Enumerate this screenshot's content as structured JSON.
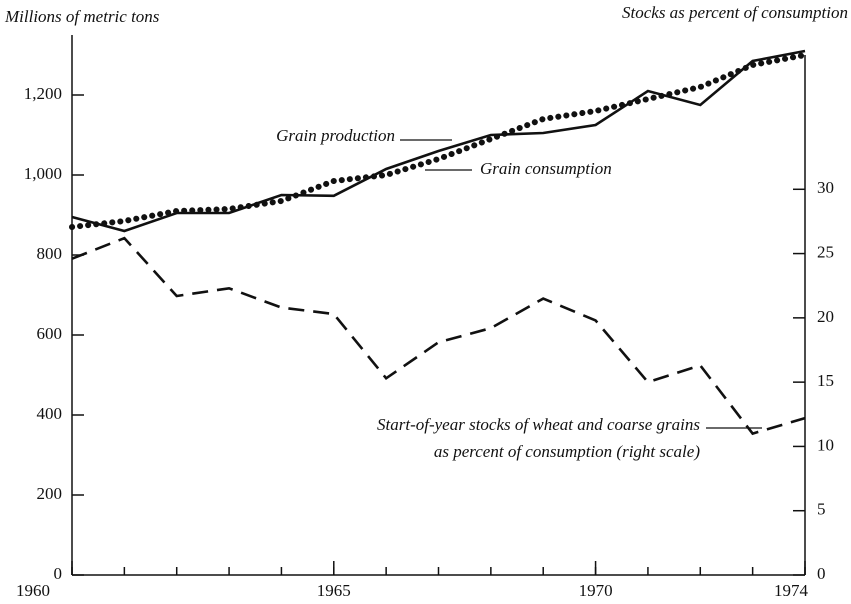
{
  "chart_data": {
    "type": "line",
    "y_axis_label": "Millions of metric tons",
    "y2_axis_label": "Stocks as percent of consumption",
    "x": [
      1960,
      1961,
      1962,
      1963,
      1964,
      1965,
      1966,
      1967,
      1968,
      1969,
      1970,
      1971,
      1972,
      1973,
      1974
    ],
    "series": [
      {
        "name": "Grain production",
        "color": "#111111",
        "style": "solid",
        "values": [
          895,
          860,
          905,
          905,
          950,
          948,
          1015,
          1060,
          1100,
          1105,
          1125,
          1210,
          1175,
          1285,
          1310
        ]
      },
      {
        "name": "Grain consumption",
        "color": "#111111",
        "style": "dotted",
        "values": [
          870,
          885,
          910,
          915,
          935,
          985,
          1000,
          1040,
          1090,
          1140,
          1160,
          1190,
          1220,
          1275,
          1300
        ]
      },
      {
        "name": "Start-of-year stocks of wheat and coarse grains as percent of consumption (right scale)",
        "color": "#111111",
        "style": "dashed",
        "axis": "y2",
        "values": [
          24.6,
          26.2,
          21.7,
          22.3,
          20.8,
          20.3,
          15.3,
          18.1,
          19.2,
          21.5,
          19.8,
          15.0,
          16.3,
          11.0,
          12.2
        ]
      }
    ],
    "annotations": [
      "Grain production",
      "Grain consumption",
      "Start-of-year stocks of wheat and coarse grains",
      "as percent of consumption (right scale)"
    ],
    "xlim": [
      1960,
      1974
    ],
    "xticks": [
      1960,
      1965,
      1970,
      1974
    ],
    "ylim": [
      0,
      1350
    ],
    "yticks": [
      0,
      200,
      400,
      600,
      800,
      {
        "value": 1000,
        "label": "1,000"
      },
      {
        "value": 1200,
        "label": "1,200"
      }
    ],
    "y2lim": [
      0,
      42
    ],
    "y2ticks": [
      0,
      5,
      10,
      15,
      20,
      25,
      30
    ],
    "grid": false
  }
}
